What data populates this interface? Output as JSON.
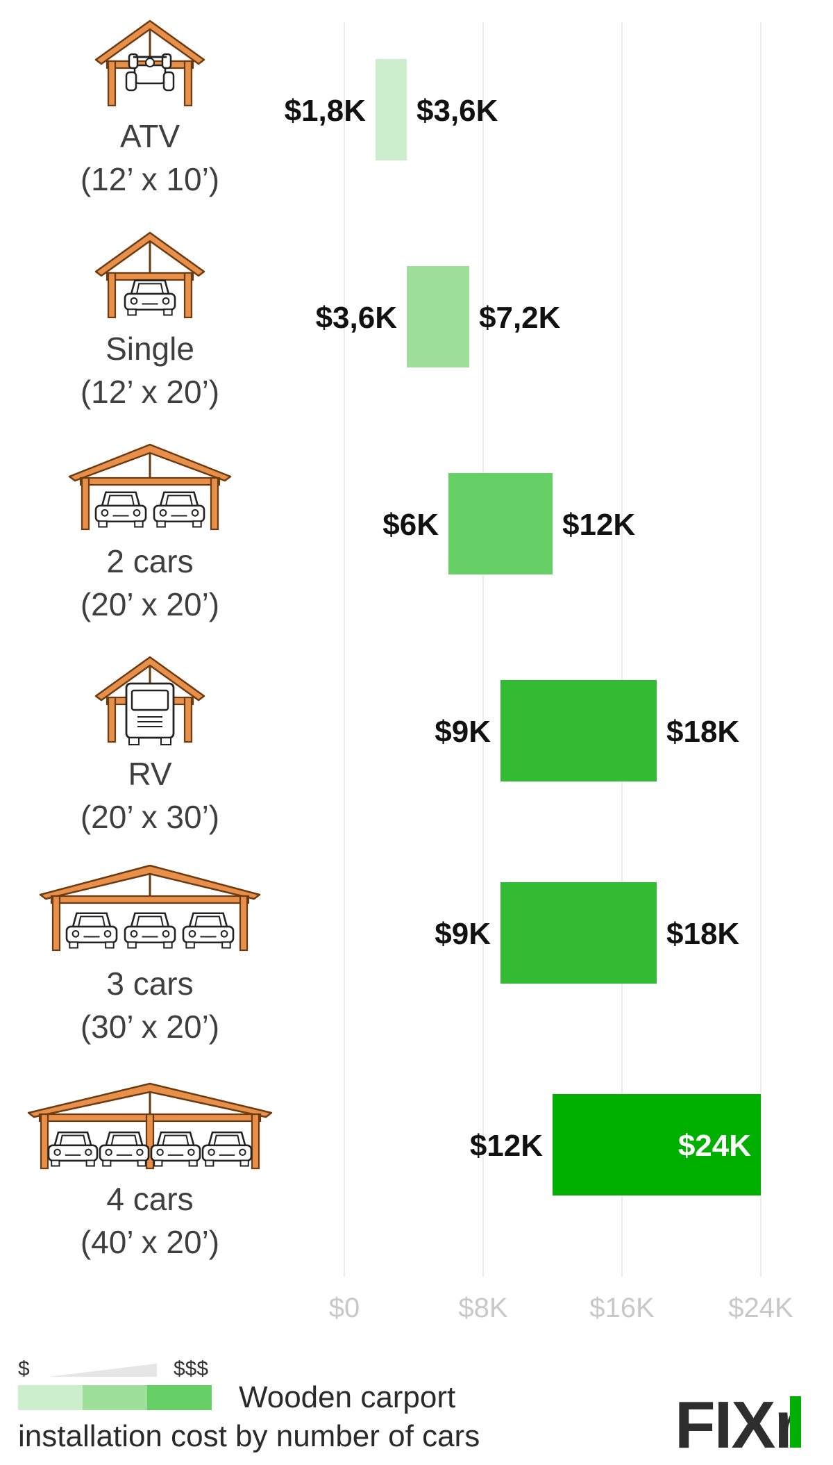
{
  "chart_data": {
    "type": "bar",
    "orientation": "horizontal-range",
    "categories": [
      {
        "name": "ATV",
        "size": "(12’ x 10’)",
        "cars": 0,
        "icon": "atv-carport-icon",
        "min": 1.8,
        "max": 3.6,
        "min_label": "$1,8K",
        "max_label": "$3,6K",
        "color": "#cdeecc"
      },
      {
        "name": "Single",
        "size": "(12’ x 20’)",
        "cars": 1,
        "icon": "single-car-carport-icon",
        "min": 3.6,
        "max": 7.2,
        "min_label": "$3,6K",
        "max_label": "$7,2K",
        "color": "#9ee09a"
      },
      {
        "name": "2 cars",
        "size": "(20’ x 20’)",
        "cars": 2,
        "icon": "two-car-carport-icon",
        "min": 6,
        "max": 12,
        "min_label": "$6K",
        "max_label": "$12K",
        "color": "#66cf66"
      },
      {
        "name": "RV",
        "size": "(20’ x 30’)",
        "cars": 0,
        "icon": "rv-carport-icon",
        "min": 9,
        "max": 18,
        "min_label": "$9K",
        "max_label": "$18K",
        "color": "#33bc33"
      },
      {
        "name": "3 cars",
        "size": "(30’ x 20’)",
        "cars": 3,
        "icon": "three-car-carport-icon",
        "min": 9,
        "max": 18,
        "min_label": "$9K",
        "max_label": "$18K",
        "color": "#33bc33"
      },
      {
        "name": "4 cars",
        "size": "(40’ x 20’)",
        "cars": 4,
        "icon": "four-car-carport-icon",
        "min": 12,
        "max": 24,
        "min_label": "$12K",
        "max_label": "$24K",
        "color": "#00b000"
      }
    ],
    "xaxis": {
      "ticks": [
        0,
        8,
        16,
        24
      ],
      "tick_labels": [
        "$0",
        "$8K",
        "$16K",
        "$24K"
      ],
      "range": [
        0,
        24
      ],
      "unit": "thousand USD"
    },
    "grid": true,
    "legend": {
      "low_symbol": "$",
      "high_symbol": "$$$",
      "swatches": [
        "#cdeecc",
        "#9ee09a",
        "#66cf66"
      ],
      "title_line1": "Wooden carport",
      "title_line2": "installation cost by number of cars"
    }
  },
  "brand": {
    "logo_text": "FIXr",
    "color": "#2e2e2e",
    "accent": "#00b000"
  },
  "colors": {
    "carport_frame": "#e8904a",
    "carport_stroke": "#6b3b12",
    "grid": "#e6e6e6",
    "tick": "#c8c8c8"
  }
}
